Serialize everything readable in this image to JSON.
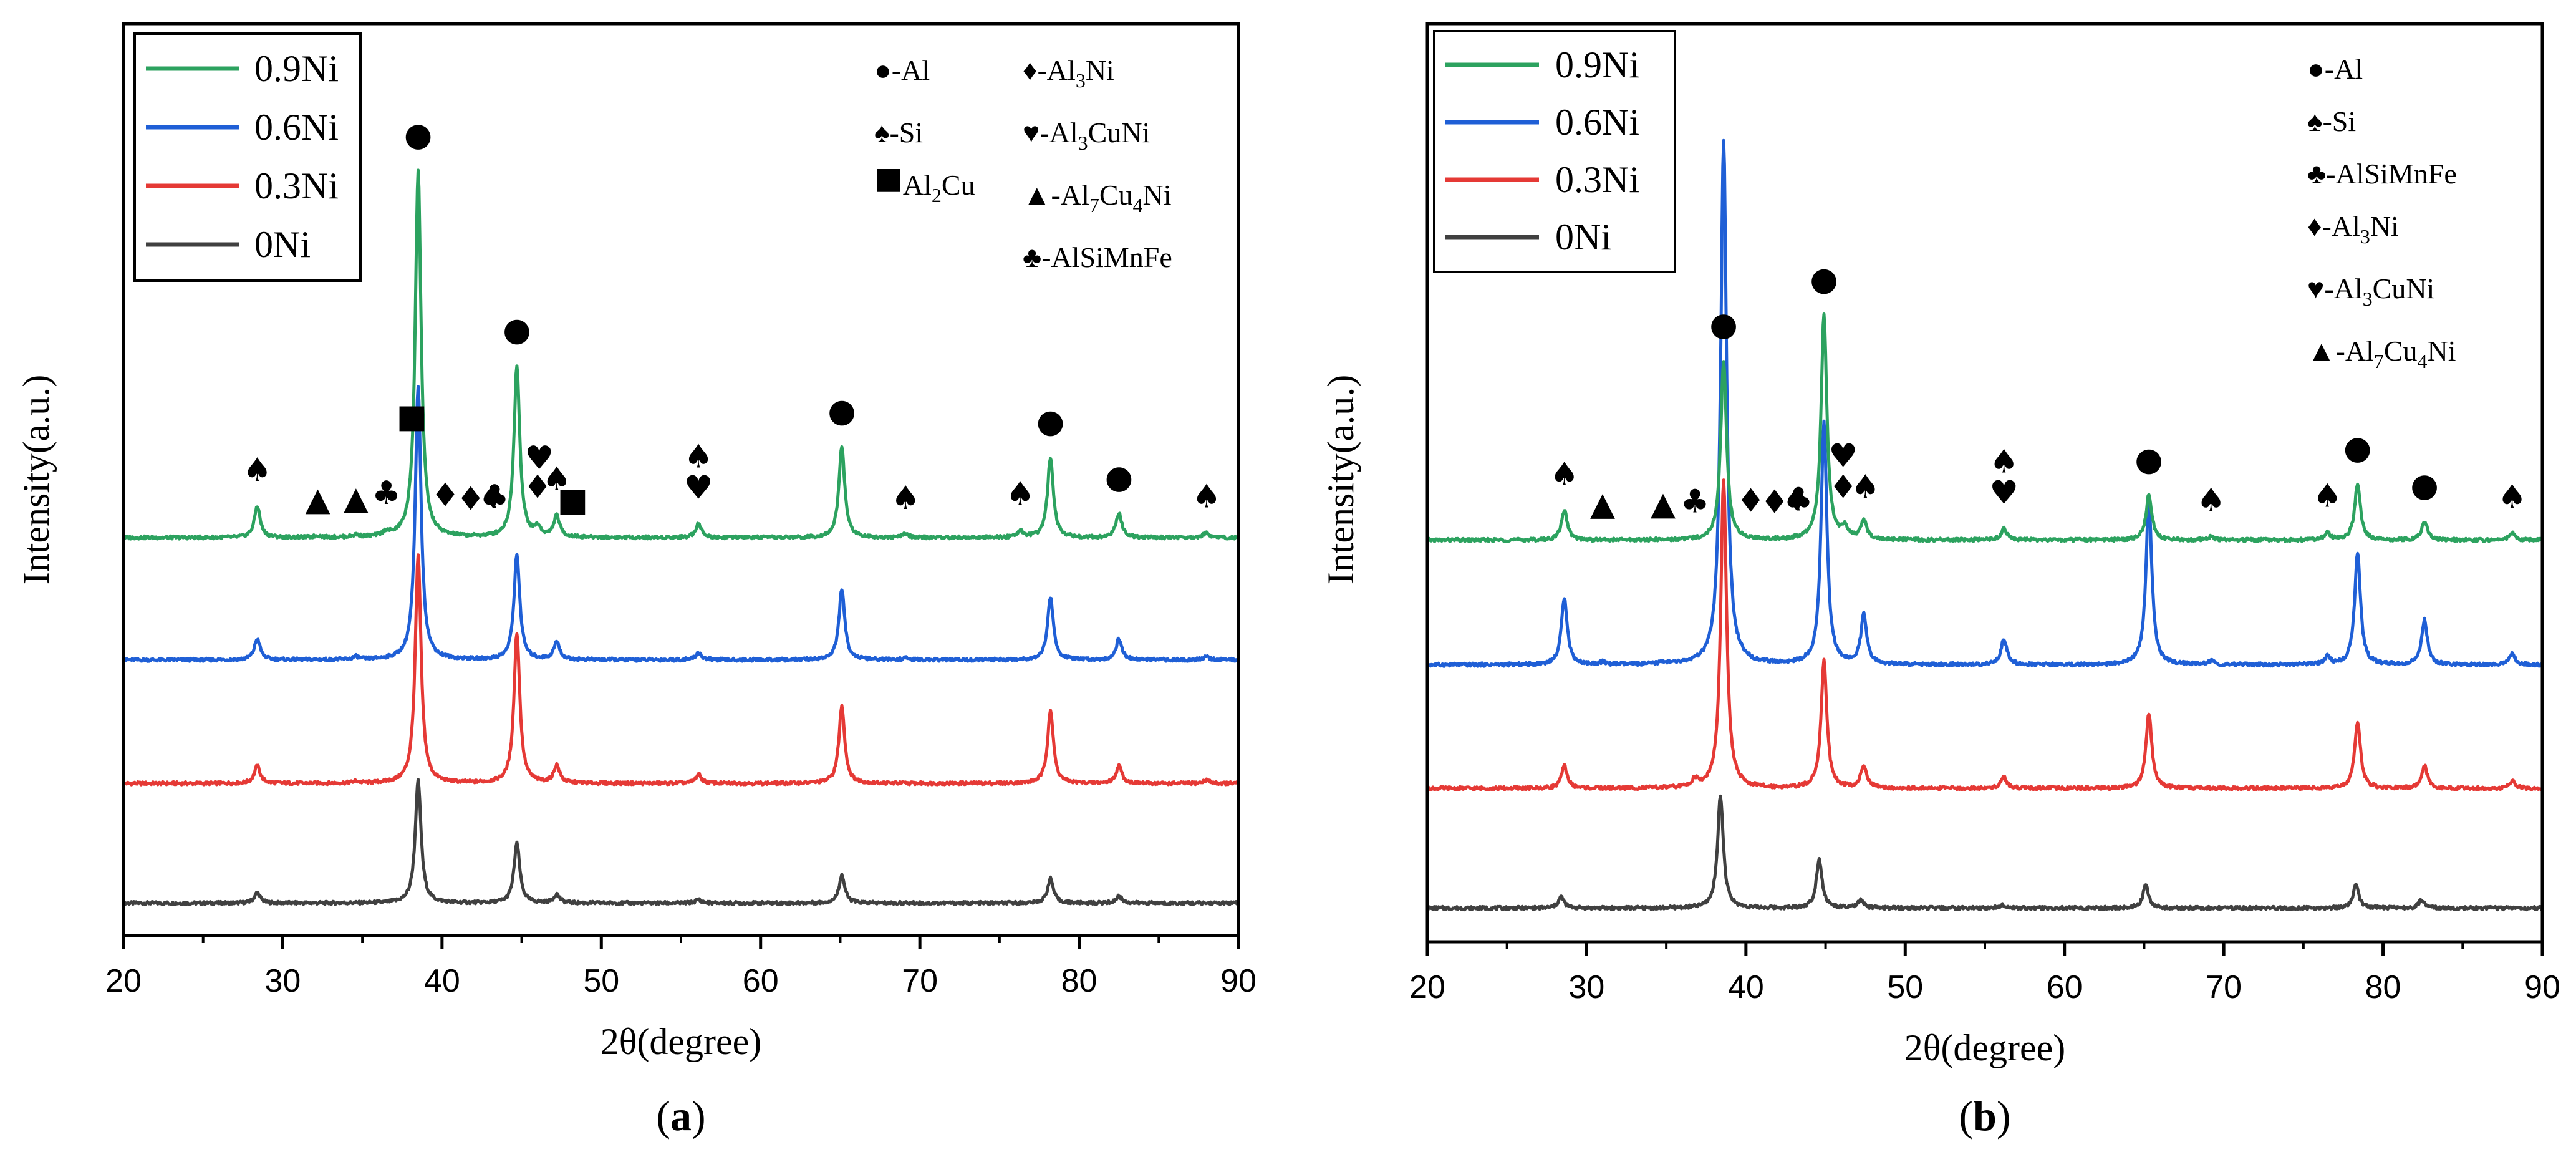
{
  "figure": {
    "panel_a_label": "(a)",
    "panel_b_label": "(b)",
    "panel_a_letter": "a",
    "panel_b_letter": "b"
  },
  "colors": {
    "0.9Ni": "#2ca25f",
    "0.6Ni": "#1f5fd6",
    "0.3Ni": "#e53935",
    "0Ni": "#404040"
  },
  "chart_data": [
    {
      "type": "line",
      "panel": "a",
      "title": "",
      "xlabel": "2θ(degree)",
      "ylabel": "Intensity(a.u.)",
      "xlim": [
        20,
        90
      ],
      "xticks": [
        20,
        30,
        40,
        50,
        60,
        70,
        80,
        90
      ],
      "legend": [
        "0.9Ni",
        "0.6Ni",
        "0.3Ni",
        "0Ni"
      ],
      "legend_position": "top-left",
      "phase_key": [
        {
          "symbol": "●",
          "label": "-Al"
        },
        {
          "symbol": "♦",
          "label": "-Al",
          "sub1": "3",
          "label2": "Ni"
        },
        {
          "symbol": "♠",
          "label": "-Si"
        },
        {
          "symbol": "♥",
          "label": "-Al",
          "sub1": "3",
          "label2": "CuNi"
        },
        {
          "symbol": "■",
          "label": "Al",
          "sub1": "2",
          "label2": "Cu"
        },
        {
          "symbol": "▲",
          "label": "-Al",
          "sub1": "7",
          "label2": "Cu",
          "sub2": "4",
          "label3": "Ni"
        },
        {
          "symbol": "♣",
          "label": "-AlSiMnFe"
        }
      ],
      "series": [
        {
          "name": "0.9Ni",
          "baseline": 0.0,
          "peaks": [
            [
              28.4,
              0.9
            ],
            [
              32.2,
              0.05
            ],
            [
              34.6,
              0.06
            ],
            [
              36.5,
              0.12
            ],
            [
              38.5,
              10.5
            ],
            [
              44.7,
              4.9
            ],
            [
              46.0,
              0.25
            ],
            [
              47.2,
              0.6
            ],
            [
              56.1,
              0.4
            ],
            [
              65.1,
              2.6
            ],
            [
              69.1,
              0.1
            ],
            [
              76.3,
              0.2
            ],
            [
              78.2,
              2.3
            ],
            [
              82.5,
              0.7
            ],
            [
              88.0,
              0.15
            ]
          ]
        },
        {
          "name": "0.6Ni",
          "baseline": 0.0,
          "peaks": [
            [
              28.4,
              0.6
            ],
            [
              34.6,
              0.08
            ],
            [
              38.5,
              7.8
            ],
            [
              44.7,
              3.0
            ],
            [
              47.2,
              0.5
            ],
            [
              56.1,
              0.2
            ],
            [
              65.1,
              2.0
            ],
            [
              69.1,
              0.05
            ],
            [
              78.2,
              1.8
            ],
            [
              82.5,
              0.6
            ],
            [
              88.0,
              0.1
            ]
          ]
        },
        {
          "name": "0.3Ni",
          "baseline": 0.0,
          "peaks": [
            [
              28.4,
              0.5
            ],
            [
              34.6,
              0.05
            ],
            [
              38.5,
              6.5
            ],
            [
              44.7,
              4.3
            ],
            [
              47.2,
              0.5
            ],
            [
              56.1,
              0.25
            ],
            [
              65.1,
              2.2
            ],
            [
              78.2,
              2.1
            ],
            [
              82.5,
              0.5
            ],
            [
              88.0,
              0.1
            ]
          ]
        },
        {
          "name": "0Ni",
          "baseline": 0.0,
          "peaks": [
            [
              28.4,
              0.3
            ],
            [
              38.5,
              3.5
            ],
            [
              44.7,
              1.7
            ],
            [
              47.2,
              0.25
            ],
            [
              56.1,
              0.1
            ],
            [
              65.1,
              0.8
            ],
            [
              78.2,
              0.7
            ],
            [
              82.5,
              0.2
            ]
          ]
        }
      ],
      "annotations": [
        {
          "symbol": "●",
          "x": 38.5
        },
        {
          "symbol": "●",
          "x": 44.7
        },
        {
          "symbol": "●",
          "x": 65.1
        },
        {
          "symbol": "●",
          "x": 78.2
        },
        {
          "symbol": "●",
          "x": 82.5
        },
        {
          "symbol": "♠",
          "x": 28.4
        },
        {
          "symbol": "▲",
          "x": 32.2
        },
        {
          "symbol": "▲",
          "x": 34.6
        },
        {
          "symbol": "♣",
          "x": 36.5
        },
        {
          "symbol": "♦",
          "x": 40.2
        },
        {
          "symbol": "♦",
          "x": 41.8
        },
        {
          "symbol": "♦",
          "x": 43.2
        },
        {
          "symbol": "♣",
          "x": 43.3
        },
        {
          "symbol": "♦",
          "x": 46.0
        },
        {
          "symbol": "♥",
          "x": 46.1
        },
        {
          "symbol": "♠",
          "x": 47.2
        },
        {
          "symbol": "■",
          "x": 48.2
        },
        {
          "symbol": "♥",
          "x": 56.1
        },
        {
          "symbol": "♠",
          "x": 56.1
        },
        {
          "symbol": "♠",
          "x": 69.1
        },
        {
          "symbol": "♠",
          "x": 76.3
        },
        {
          "symbol": "♠",
          "x": 88.0
        },
        {
          "symbol": "■",
          "x": 38.1
        }
      ]
    },
    {
      "type": "line",
      "panel": "b",
      "title": "",
      "xlabel": "2θ(degree)",
      "ylabel": "Intensity(a.u.)",
      "xlim": [
        20,
        90
      ],
      "xticks": [
        20,
        30,
        40,
        50,
        60,
        70,
        80,
        90
      ],
      "legend": [
        "0.9Ni",
        "0.6Ni",
        "0.3Ni",
        "0Ni"
      ],
      "legend_position": "top-left",
      "phase_key": [
        {
          "symbol": "●",
          "label": "-Al"
        },
        {
          "symbol": "♠",
          "label": "-Si"
        },
        {
          "symbol": "♣",
          "label": "-AlSiMnFe"
        },
        {
          "symbol": "♦",
          "label": "-Al",
          "sub1": "3",
          "label2": "Ni"
        },
        {
          "symbol": "♥",
          "label": "-Al",
          "sub1": "3",
          "label2": "CuNi"
        },
        {
          "symbol": "▲",
          "label": "-Al",
          "sub1": "7",
          "label2": "Cu",
          "sub2": "4",
          "label3": "Ni"
        }
      ],
      "series": [
        {
          "name": "0.9Ni",
          "baseline": 0.0,
          "peaks": [
            [
              28.6,
              0.8
            ],
            [
              38.6,
              4.8
            ],
            [
              44.9,
              6.0
            ],
            [
              46.2,
              0.3
            ],
            [
              47.4,
              0.5
            ],
            [
              56.2,
              0.3
            ],
            [
              65.3,
              1.2
            ],
            [
              69.2,
              0.1
            ],
            [
              76.5,
              0.2
            ],
            [
              78.4,
              1.5
            ],
            [
              82.6,
              0.5
            ],
            [
              88.1,
              0.2
            ]
          ]
        },
        {
          "name": "0.6Ni",
          "baseline": 0.0,
          "peaks": [
            [
              28.6,
              1.8
            ],
            [
              31.0,
              0.06
            ],
            [
              34.8,
              0.06
            ],
            [
              38.6,
              14.0
            ],
            [
              44.9,
              6.5
            ],
            [
              47.4,
              1.3
            ],
            [
              56.2,
              0.7
            ],
            [
              65.3,
              4.4
            ],
            [
              69.2,
              0.1
            ],
            [
              76.5,
              0.2
            ],
            [
              78.4,
              3.0
            ],
            [
              82.6,
              1.2
            ],
            [
              88.1,
              0.3
            ]
          ]
        },
        {
          "name": "0.3Ni",
          "baseline": 0.0,
          "peaks": [
            [
              28.6,
              0.6
            ],
            [
              36.8,
              0.2
            ],
            [
              38.6,
              8.2
            ],
            [
              44.9,
              3.4
            ],
            [
              47.4,
              0.6
            ],
            [
              56.2,
              0.3
            ],
            [
              65.3,
              2.0
            ],
            [
              78.4,
              1.8
            ],
            [
              82.6,
              0.6
            ],
            [
              88.1,
              0.2
            ]
          ]
        },
        {
          "name": "0Ni",
          "baseline": 0.0,
          "peaks": [
            [
              28.4,
              0.3
            ],
            [
              38.4,
              3.0
            ],
            [
              44.6,
              1.3
            ],
            [
              47.2,
              0.2
            ],
            [
              56.1,
              0.1
            ],
            [
              65.1,
              0.6
            ],
            [
              78.3,
              0.6
            ],
            [
              82.4,
              0.2
            ]
          ]
        }
      ],
      "annotations": [
        {
          "symbol": "●",
          "x": 38.6
        },
        {
          "symbol": "●",
          "x": 44.9
        },
        {
          "symbol": "●",
          "x": 65.3
        },
        {
          "symbol": "●",
          "x": 78.4
        },
        {
          "symbol": "●",
          "x": 82.6
        },
        {
          "symbol": "♠",
          "x": 28.6
        },
        {
          "symbol": "♦",
          "x": 40.3
        },
        {
          "symbol": "♦",
          "x": 41.8
        },
        {
          "symbol": "♦",
          "x": 43.2
        },
        {
          "symbol": "♣",
          "x": 43.3
        },
        {
          "symbol": "♦",
          "x": 46.1
        },
        {
          "symbol": "♥",
          "x": 46.1
        },
        {
          "symbol": "♠",
          "x": 47.5
        },
        {
          "symbol": "♥",
          "x": 56.2
        },
        {
          "symbol": "♠",
          "x": 56.2
        },
        {
          "symbol": "♠",
          "x": 69.2
        },
        {
          "symbol": "♠",
          "x": 76.5
        },
        {
          "symbol": "♠",
          "x": 88.1
        },
        {
          "symbol": "▲",
          "x": 31.0
        },
        {
          "symbol": "▲",
          "x": 34.8
        },
        {
          "symbol": "♣",
          "x": 36.8
        }
      ]
    }
  ]
}
